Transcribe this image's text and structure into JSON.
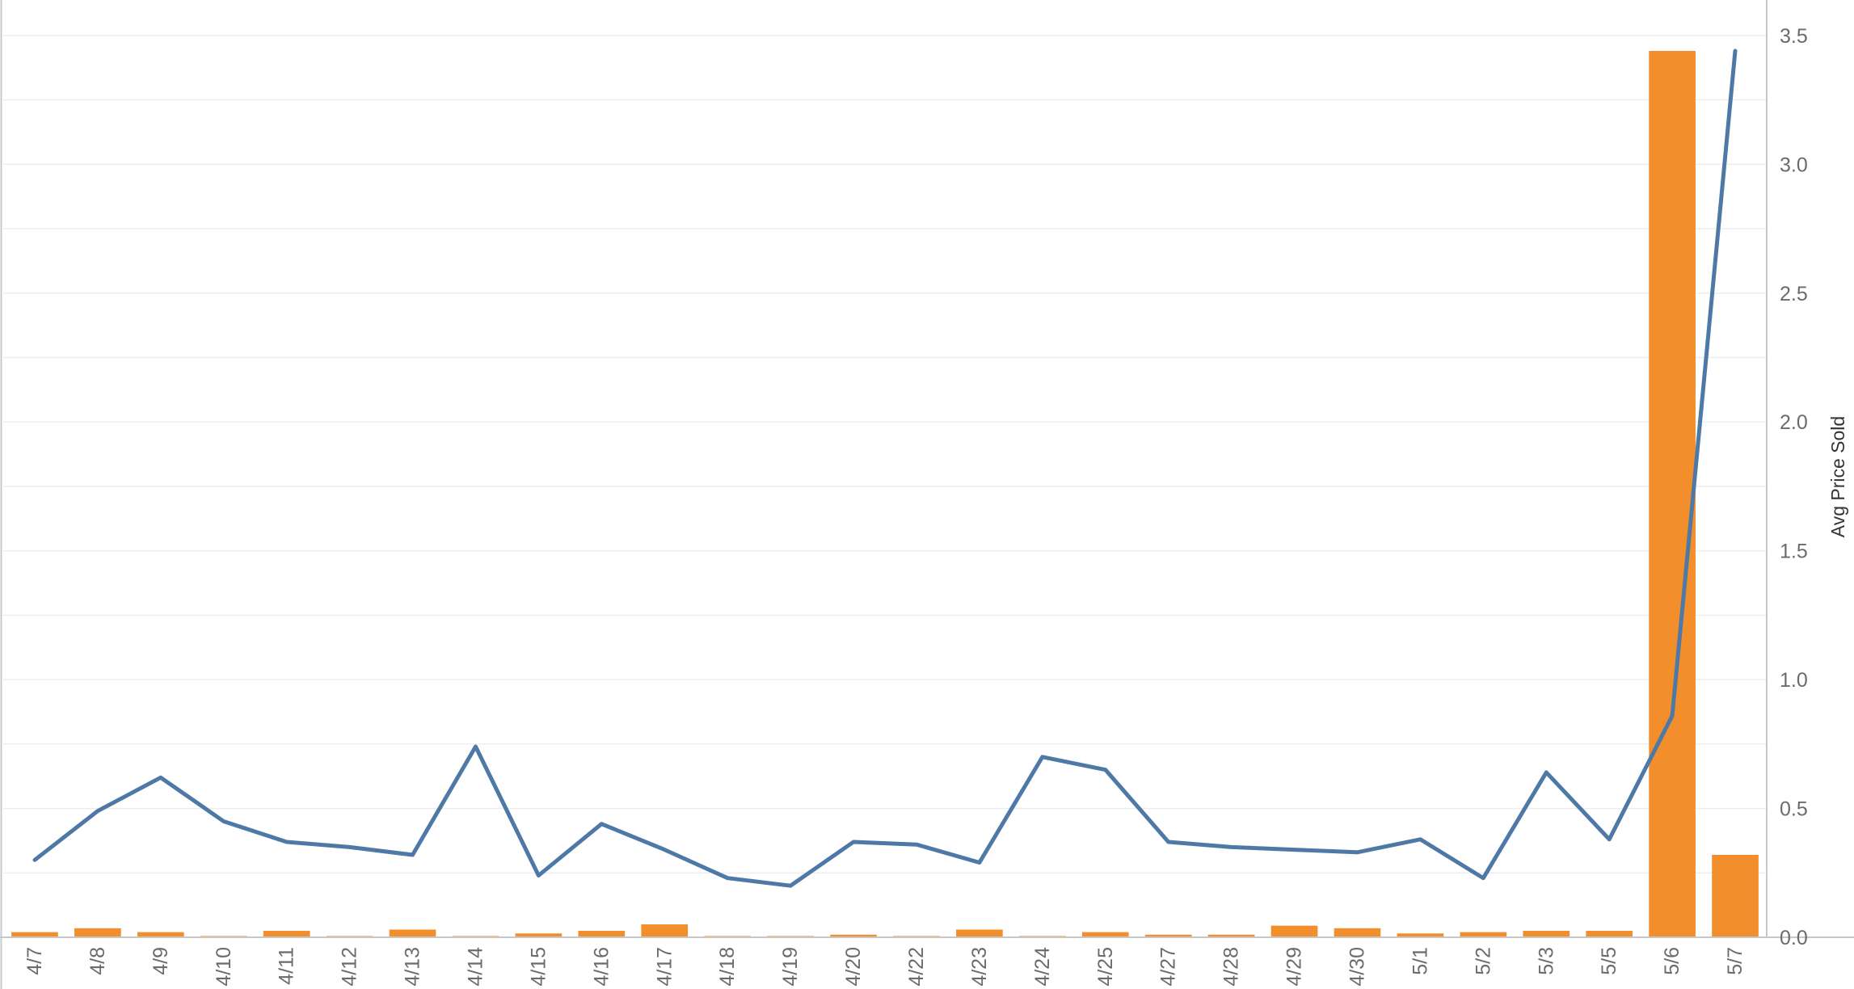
{
  "chart_data": {
    "type": "bar+line",
    "x": [
      "4/7",
      "4/8",
      "4/9",
      "4/10",
      "4/11",
      "4/12",
      "4/13",
      "4/14",
      "4/15",
      "4/16",
      "4/17",
      "4/18",
      "4/19",
      "4/20",
      "4/22",
      "4/23",
      "4/24",
      "4/25",
      "4/27",
      "4/28",
      "4/29",
      "4/30",
      "5/1",
      "5/2",
      "5/3",
      "5/5",
      "5/6",
      "5/7"
    ],
    "series": [
      {
        "type": "bar",
        "color": "#f28e2b",
        "values": [
          0.02,
          0.035,
          0.02,
          0.005,
          0.025,
          0.005,
          0.03,
          0.005,
          0.015,
          0.025,
          0.05,
          0.005,
          0.005,
          0.01,
          0.005,
          0.03,
          0.005,
          0.02,
          0.01,
          0.01,
          0.045,
          0.035,
          0.015,
          0.02,
          0.025,
          0.025,
          3.44,
          0.32
        ]
      },
      {
        "type": "line",
        "color": "#4e79a7",
        "values": [
          0.3,
          0.49,
          0.62,
          0.45,
          0.37,
          0.35,
          0.32,
          0.74,
          0.24,
          0.44,
          0.34,
          0.23,
          0.2,
          0.37,
          0.36,
          0.29,
          0.7,
          0.65,
          0.37,
          0.35,
          0.34,
          0.33,
          0.38,
          0.23,
          0.64,
          0.38,
          0.86,
          3.44
        ]
      }
    ],
    "y_right": {
      "label": "Avg Price Sold",
      "range": [
        0,
        3.6
      ],
      "ticks": [
        "0.0",
        "0.5",
        "1.0",
        "1.5",
        "2.0",
        "2.5",
        "3.0",
        "3.5"
      ]
    },
    "grid": true
  }
}
